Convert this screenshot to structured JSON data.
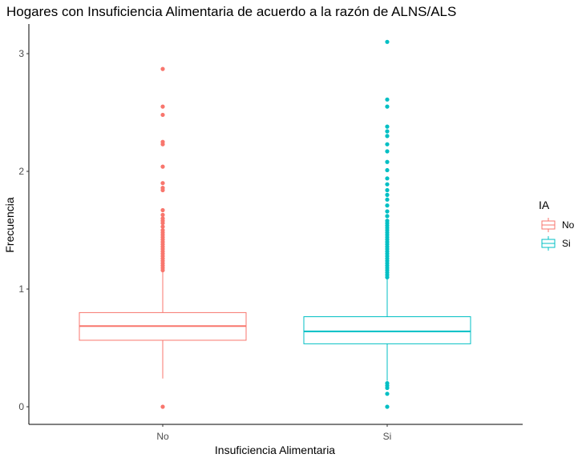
{
  "chart_data": {
    "type": "boxplot",
    "title": "Hogares con Insuficiencia Alimentaria de acuerdo a la razón de ALNS/ALS",
    "xlabel": "Insuficiencia Alimentaria",
    "ylabel": "Frecuencia",
    "ylim": [
      -0.14,
      3.27
    ],
    "yticks": [
      0,
      1,
      2,
      3
    ],
    "yticks_labels": [
      "0",
      "1",
      "2",
      "3"
    ],
    "categories": [
      "No",
      "Si"
    ],
    "grid": false,
    "legend": {
      "title": "IA",
      "position": "right",
      "entries": [
        "No",
        "Si"
      ]
    },
    "series": [
      {
        "name": "No",
        "color": "#F8766D",
        "min": 0.24,
        "q1": 0.565,
        "median": 0.685,
        "q3": 0.8,
        "max": 1.15,
        "outliers": [
          0.0,
          1.16,
          1.18,
          1.2,
          1.22,
          1.24,
          1.26,
          1.28,
          1.3,
          1.32,
          1.34,
          1.36,
          1.38,
          1.4,
          1.42,
          1.44,
          1.46,
          1.48,
          1.5,
          1.53,
          1.56,
          1.58,
          1.6,
          1.63,
          1.67,
          1.84,
          1.86,
          1.9,
          2.04,
          2.23,
          2.25,
          2.48,
          2.55,
          2.87
        ]
      },
      {
        "name": "Si",
        "color": "#00BFC4",
        "min": 0.22,
        "q1": 0.535,
        "median": 0.64,
        "q3": 0.765,
        "max": 1.09,
        "outliers": [
          0.0,
          0.11,
          0.16,
          0.18,
          0.2,
          1.1,
          1.12,
          1.14,
          1.16,
          1.18,
          1.2,
          1.22,
          1.24,
          1.26,
          1.28,
          1.3,
          1.32,
          1.34,
          1.36,
          1.38,
          1.4,
          1.42,
          1.44,
          1.46,
          1.48,
          1.5,
          1.52,
          1.54,
          1.56,
          1.58,
          1.62,
          1.66,
          1.71,
          1.76,
          1.8,
          1.84,
          1.89,
          1.94,
          2.01,
          2.08,
          2.17,
          2.23,
          2.3,
          2.34,
          2.38,
          2.55,
          2.61,
          3.1
        ]
      }
    ]
  }
}
